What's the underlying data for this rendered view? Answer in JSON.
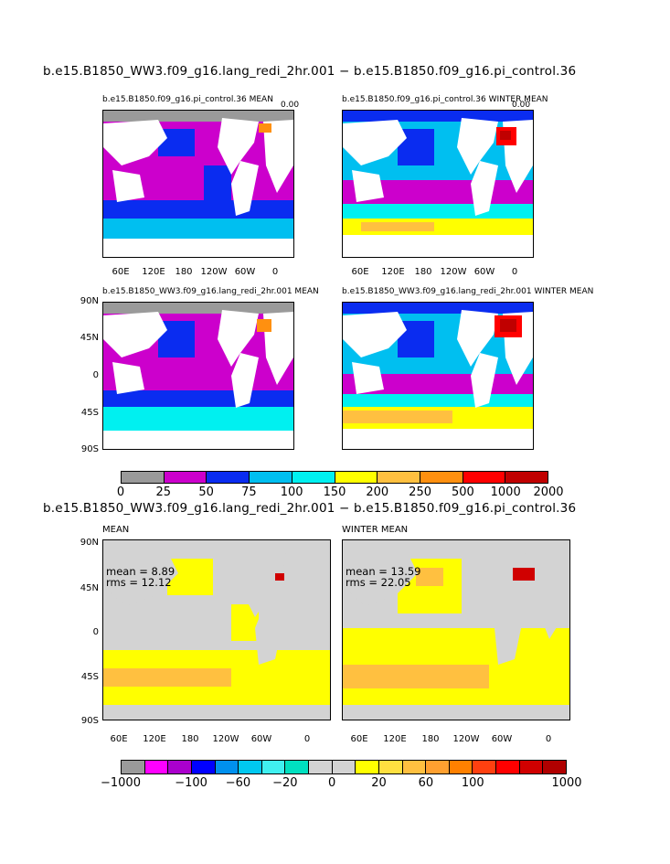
{
  "top": {
    "title": "b.e15.B1850_WW3.f09_g16.lang_redi_2hr.001 − b.e15.B1850.f09_g16.pi_control.36",
    "panels": [
      {
        "title": "b.e15.B1850.f09_g16.pi_control.36 MEAN",
        "corner": "0.00"
      },
      {
        "title": "b.e15.B1850.f09_g16.pi_control.36 WINTER MEAN",
        "corner": "0.00"
      },
      {
        "title": "b.e15.B1850_WW3.f09_g16.lang_redi_2hr.001 MEAN"
      },
      {
        "title": "b.e15.B1850_WW3.f09_g16.lang_redi_2hr.001 WINTER MEAN"
      }
    ],
    "colorbar": {
      "labels": [
        "0",
        "25",
        "50",
        "75",
        "100",
        "150",
        "200",
        "250",
        "500",
        "1000",
        "2000"
      ],
      "colors": [
        "#9a9a9a",
        "#cc00cc",
        "#0a2cf0",
        "#00bff0",
        "#00f0f0",
        "#ffff00",
        "#ffc040",
        "#ff9010",
        "#ff0000",
        "#c00000"
      ]
    }
  },
  "bottom": {
    "title": "b.e15.B1850_WW3.f09_g16.lang_redi_2hr.001 − b.e15.B1850.f09_g16.pi_control.36",
    "panels": [
      {
        "title": "MEAN",
        "mean": "mean = 8.89",
        "rms": "rms = 12.12"
      },
      {
        "title": "WINTER MEAN",
        "mean": "mean = 13.59",
        "rms": "rms = 22.05"
      }
    ],
    "colorbar": {
      "labels": [
        "−1000",
        "−100",
        "−60",
        "−20",
        "0",
        "20",
        "60",
        "100",
        "1000"
      ],
      "colors": [
        "#9a9a9a",
        "#ff00ff",
        "#aa00cc",
        "#0000ff",
        "#0090ee",
        "#00c8f0",
        "#40f0f0",
        "#00e0c0",
        "#d3d3d3",
        "#d3d3d3",
        "#ffff00",
        "#ffe040",
        "#ffc040",
        "#ffa030",
        "#ff8000",
        "#ff4010",
        "#ff0000",
        "#d00000",
        "#b00000"
      ]
    }
  },
  "axes": {
    "lat": [
      "90N",
      "45N",
      "0",
      "45S",
      "90S"
    ],
    "lon": [
      "60E",
      "120E",
      "180",
      "120W",
      "60W",
      "0"
    ]
  },
  "colors": {
    "land": "#ffffff",
    "land_fill_bottom": "#d3d3d3"
  }
}
